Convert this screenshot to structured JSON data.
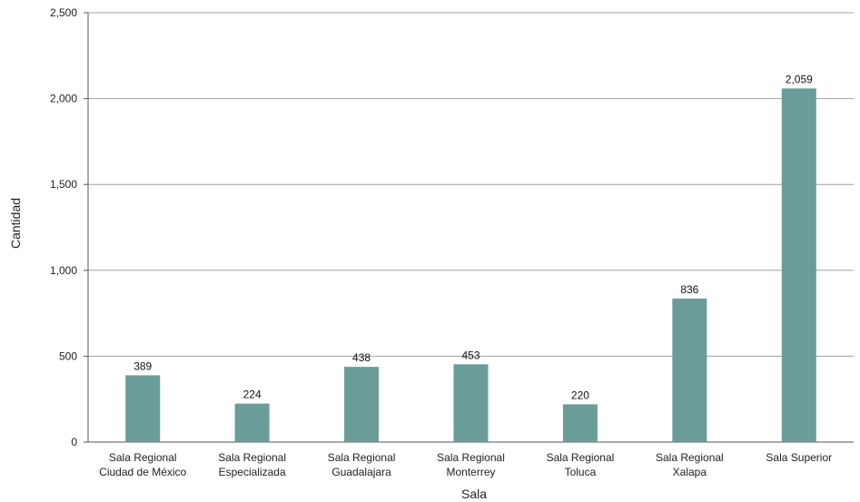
{
  "chart_data": {
    "type": "bar",
    "title": "",
    "xlabel": "Sala",
    "ylabel": "Cantidad",
    "ylim": [
      0,
      2500
    ],
    "yticks": [
      0,
      500,
      1000,
      1500,
      2000,
      2500
    ],
    "ytick_labels": [
      "0",
      "500",
      "1,000",
      "1,500",
      "2,000",
      "2,500"
    ],
    "grid": true,
    "legend": "none",
    "categories": [
      [
        "Sala Regional",
        "Ciudad de México"
      ],
      [
        "Sala Regional",
        "Especializada"
      ],
      [
        "Sala Regional",
        "Guadalajara"
      ],
      [
        "Sala Regional",
        "Monterrey"
      ],
      [
        "Sala Regional",
        "Toluca"
      ],
      [
        "Sala Regional",
        "Xalapa"
      ],
      [
        "Sala Superior"
      ]
    ],
    "values": [
      389,
      224,
      438,
      453,
      220,
      836,
      2059
    ],
    "value_labels": [
      "389",
      "224",
      "438",
      "453",
      "220",
      "836",
      "2,059"
    ],
    "colors": {
      "bar": "#6a9c9a",
      "grid": "#a0a0a0",
      "axis": "#555555"
    }
  }
}
